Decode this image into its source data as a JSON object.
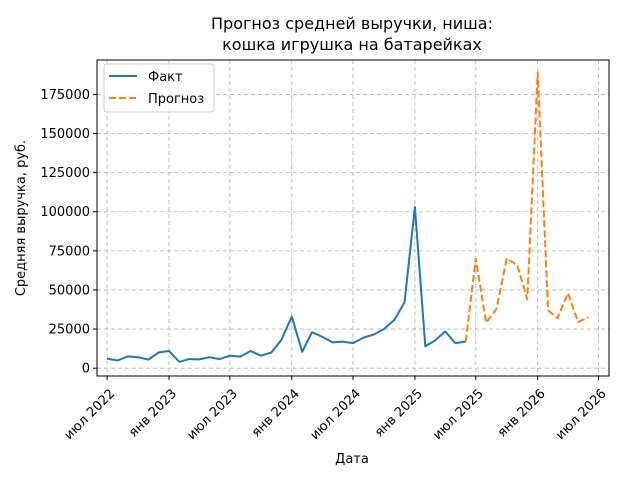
{
  "chart_data": {
    "type": "line",
    "title_line1": "Прогноз средней выручки, ниша:",
    "title_line2": "кошка игрушка на батарейках",
    "xlabel": "Дата",
    "ylabel": "Средняя выручка, руб.",
    "ylim": [
      -5000,
      197000
    ],
    "xlim": [
      "2022-06-01",
      "2026-08-01"
    ],
    "grid": true,
    "legend_position": "top-left",
    "y_ticks": [
      0,
      25000,
      50000,
      75000,
      100000,
      125000,
      150000,
      175000
    ],
    "x_ticks": [
      {
        "date": "2022-07-01",
        "label": "июл 2022"
      },
      {
        "date": "2023-01-01",
        "label": "янв 2023"
      },
      {
        "date": "2023-07-01",
        "label": "июл 2023"
      },
      {
        "date": "2024-01-01",
        "label": "янв 2024"
      },
      {
        "date": "2024-07-01",
        "label": "июл 2024"
      },
      {
        "date": "2025-01-01",
        "label": "янв 2025"
      },
      {
        "date": "2025-07-01",
        "label": "июл 2025"
      },
      {
        "date": "2026-01-01",
        "label": "янв 2026"
      },
      {
        "date": "2026-07-01",
        "label": "июл 2026"
      }
    ],
    "series": [
      {
        "name": "Факт",
        "color": "#1f77b4",
        "style": "solid",
        "points": [
          {
            "x": "2022-07-01",
            "y": 6000
          },
          {
            "x": "2022-08-01",
            "y": 5000
          },
          {
            "x": "2022-09-01",
            "y": 7500
          },
          {
            "x": "2022-10-01",
            "y": 7000
          },
          {
            "x": "2022-11-01",
            "y": 5500
          },
          {
            "x": "2022-12-01",
            "y": 10000
          },
          {
            "x": "2023-01-01",
            "y": 11000
          },
          {
            "x": "2023-02-01",
            "y": 4000
          },
          {
            "x": "2023-03-01",
            "y": 5800
          },
          {
            "x": "2023-04-01",
            "y": 5600
          },
          {
            "x": "2023-05-01",
            "y": 7000
          },
          {
            "x": "2023-06-01",
            "y": 5800
          },
          {
            "x": "2023-07-01",
            "y": 8000
          },
          {
            "x": "2023-08-01",
            "y": 7400
          },
          {
            "x": "2023-09-01",
            "y": 11000
          },
          {
            "x": "2023-10-01",
            "y": 8000
          },
          {
            "x": "2023-11-01",
            "y": 10000
          },
          {
            "x": "2023-12-01",
            "y": 18000
          },
          {
            "x": "2024-01-01",
            "y": 33000
          },
          {
            "x": "2024-02-01",
            "y": 10500
          },
          {
            "x": "2024-03-01",
            "y": 23000
          },
          {
            "x": "2024-04-01",
            "y": 20000
          },
          {
            "x": "2024-05-01",
            "y": 16500
          },
          {
            "x": "2024-06-01",
            "y": 17000
          },
          {
            "x": "2024-07-01",
            "y": 16000
          },
          {
            "x": "2024-08-01",
            "y": 19500
          },
          {
            "x": "2024-09-01",
            "y": 21500
          },
          {
            "x": "2024-10-01",
            "y": 25000
          },
          {
            "x": "2024-11-01",
            "y": 31000
          },
          {
            "x": "2024-12-01",
            "y": 42000
          },
          {
            "x": "2025-01-01",
            "y": 103000
          },
          {
            "x": "2025-02-01",
            "y": 14000
          },
          {
            "x": "2025-03-01",
            "y": 17500
          },
          {
            "x": "2025-04-01",
            "y": 23500
          },
          {
            "x": "2025-05-01",
            "y": 16000
          },
          {
            "x": "2025-06-01",
            "y": 17000
          }
        ]
      },
      {
        "name": "Прогноз",
        "color": "#ff7f0e",
        "style": "dashed",
        "points": [
          {
            "x": "2025-06-01",
            "y": 17000
          },
          {
            "x": "2025-07-01",
            "y": 70000
          },
          {
            "x": "2025-08-01",
            "y": 29000
          },
          {
            "x": "2025-09-01",
            "y": 38000
          },
          {
            "x": "2025-10-01",
            "y": 70000
          },
          {
            "x": "2025-11-01",
            "y": 66000
          },
          {
            "x": "2025-12-01",
            "y": 44000
          },
          {
            "x": "2026-01-01",
            "y": 189000
          },
          {
            "x": "2026-02-01",
            "y": 37000
          },
          {
            "x": "2026-03-01",
            "y": 32000
          },
          {
            "x": "2026-04-01",
            "y": 48000
          },
          {
            "x": "2026-05-01",
            "y": 29500
          },
          {
            "x": "2026-06-01",
            "y": 32500
          }
        ]
      }
    ]
  }
}
